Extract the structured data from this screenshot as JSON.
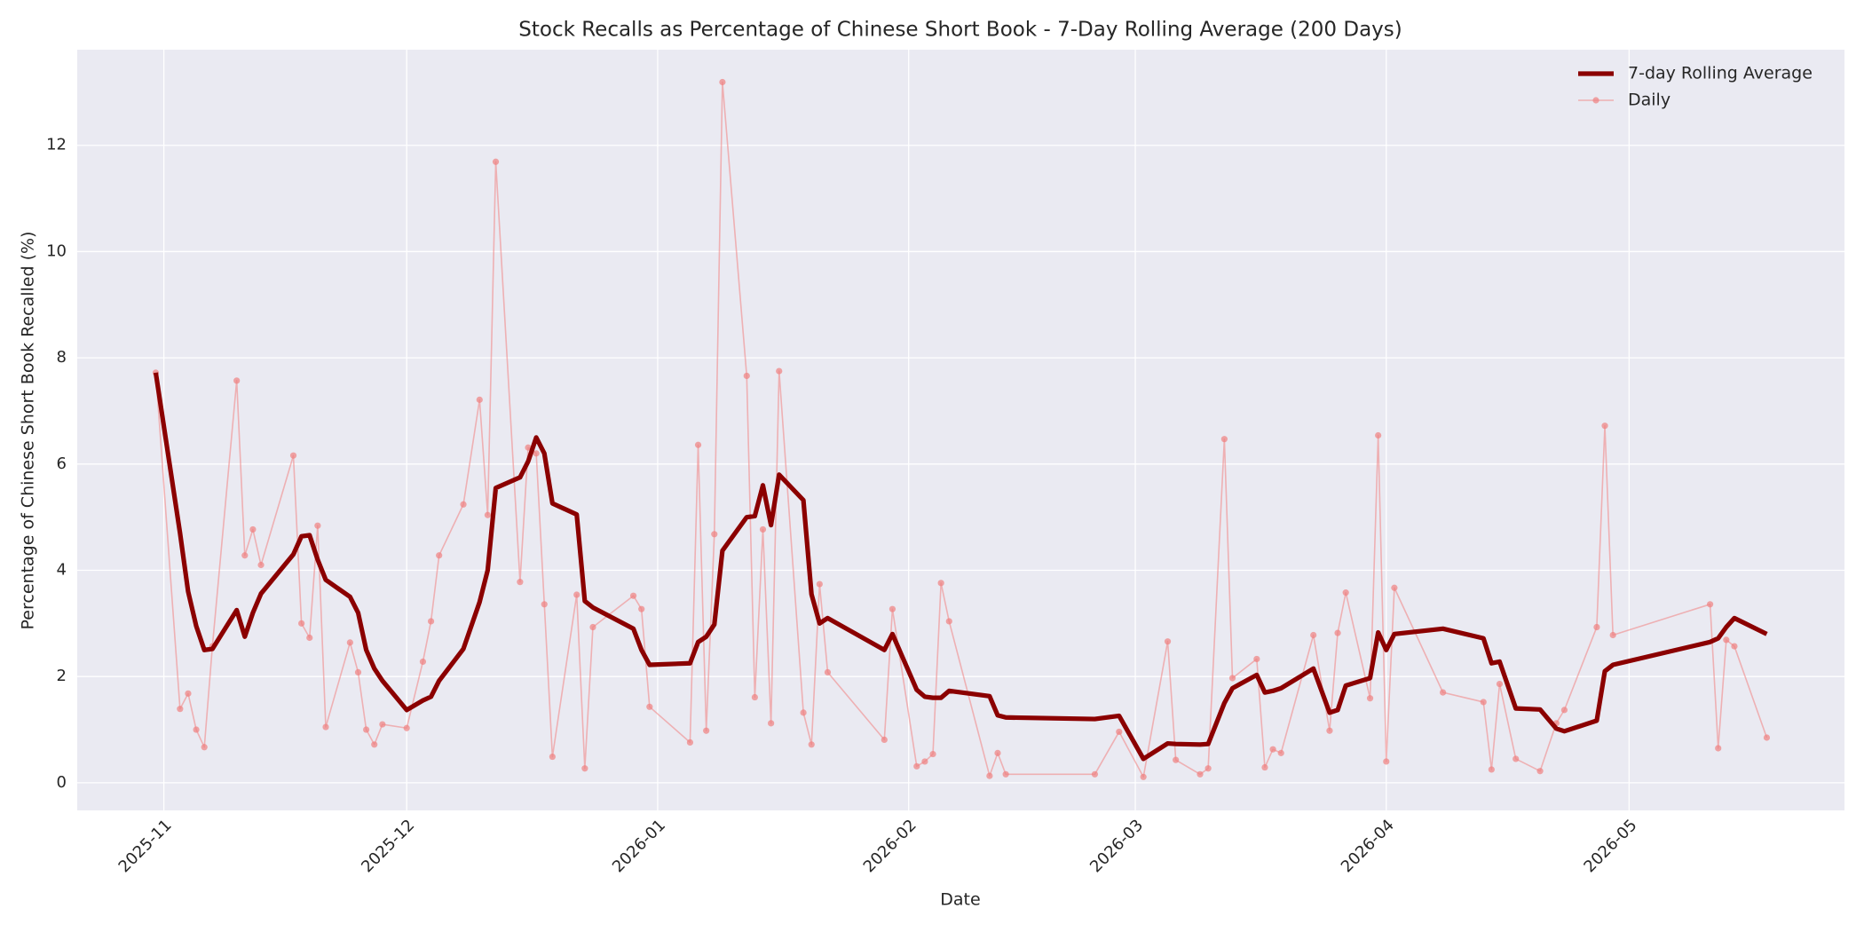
{
  "chart_data": {
    "type": "line",
    "title": "Stock Recalls as Percentage of Chinese Short Book - 7-Day Rolling Average (200 Days)",
    "x_label": "Date",
    "y_label": "Percentage of Chinese Short Book Recalled (%)",
    "x": [
      -1,
      2,
      3,
      4,
      5,
      6,
      9,
      10,
      11,
      12,
      16,
      17,
      18,
      19,
      20,
      23,
      24,
      25,
      26,
      27,
      30,
      32,
      33,
      34,
      37,
      39,
      40,
      41,
      44,
      45,
      46,
      47,
      48,
      51,
      52,
      53,
      58,
      59,
      60,
      65,
      66,
      67,
      68,
      69,
      72,
      73,
      74,
      75,
      76,
      79,
      80,
      81,
      82,
      89,
      90,
      93,
      94,
      95,
      96,
      97,
      102,
      103,
      104,
      115,
      118,
      121,
      124,
      125,
      128,
      129,
      131,
      132,
      135,
      136,
      137,
      138,
      142,
      144,
      145,
      146,
      149,
      150,
      151,
      152,
      158,
      163,
      164,
      165,
      167,
      170,
      172,
      173,
      177,
      178,
      179,
      191,
      192,
      193,
      194,
      198
    ],
    "series": [
      {
        "name": "7-day Rolling Average",
        "color": "#8b0000",
        "marker": false,
        "values": [
          7.72,
          4.7,
          3.6,
          2.95,
          2.5,
          2.52,
          3.25,
          2.75,
          3.2,
          3.56,
          4.3,
          4.64,
          4.66,
          4.2,
          3.82,
          3.5,
          3.2,
          2.5,
          2.15,
          1.92,
          1.37,
          1.55,
          1.62,
          1.92,
          2.52,
          3.4,
          4.0,
          5.55,
          5.75,
          6.05,
          6.5,
          6.2,
          5.26,
          5.05,
          3.42,
          3.3,
          2.9,
          2.5,
          2.22,
          2.25,
          2.65,
          2.75,
          2.98,
          4.37,
          5.0,
          5.02,
          5.6,
          4.85,
          5.8,
          5.32,
          3.55,
          3.0,
          3.1,
          2.5,
          2.8,
          1.75,
          1.62,
          1.6,
          1.6,
          1.73,
          1.63,
          1.27,
          1.23,
          1.2,
          1.26,
          0.45,
          0.74,
          0.73,
          0.72,
          0.73,
          1.5,
          1.78,
          2.03,
          1.7,
          1.73,
          1.78,
          2.15,
          1.32,
          1.37,
          1.83,
          1.97,
          2.83,
          2.5,
          2.8,
          2.9,
          2.72,
          2.25,
          2.28,
          1.4,
          1.38,
          1.02,
          0.97,
          1.17,
          2.1,
          2.22,
          2.65,
          2.72,
          2.93,
          3.1,
          2.8
        ]
      },
      {
        "name": "Daily",
        "color": "#f08080",
        "marker": true,
        "values": [
          7.72,
          1.39,
          1.68,
          1.0,
          0.67,
          2.57,
          7.57,
          4.28,
          4.77,
          4.1,
          6.16,
          3.0,
          2.73,
          4.84,
          1.05,
          2.64,
          2.08,
          1.0,
          0.72,
          1.1,
          1.03,
          2.28,
          3.04,
          4.28,
          5.24,
          7.21,
          5.04,
          11.69,
          3.78,
          6.31,
          6.2,
          3.36,
          0.49,
          3.54,
          0.27,
          2.93,
          3.52,
          3.27,
          1.43,
          0.76,
          6.36,
          0.98,
          4.68,
          13.19,
          7.66,
          1.61,
          4.77,
          1.12,
          7.75,
          1.32,
          0.72,
          3.74,
          2.08,
          0.81,
          3.27,
          0.31,
          0.4,
          0.54,
          3.76,
          3.04,
          0.13,
          0.56,
          0.16,
          0.16,
          0.96,
          0.11,
          2.66,
          0.43,
          0.16,
          0.27,
          6.47,
          1.97,
          2.33,
          0.29,
          0.63,
          0.56,
          2.78,
          0.98,
          2.82,
          3.58,
          1.59,
          6.54,
          0.4,
          3.67,
          1.7,
          1.52,
          0.25,
          1.86,
          0.45,
          0.22,
          1.12,
          1.37,
          2.93,
          6.72,
          2.78,
          3.36,
          0.65,
          2.69,
          2.57,
          0.85
        ]
      }
    ],
    "xlim": [
      -10.7,
      207.6
    ],
    "xticks": [
      {
        "value": 0,
        "label": "2025-11"
      },
      {
        "value": 30,
        "label": "2025-12"
      },
      {
        "value": 61,
        "label": "2026-01"
      },
      {
        "value": 92,
        "label": "2026-02"
      },
      {
        "value": 120,
        "label": "2026-03"
      },
      {
        "value": 151,
        "label": "2026-04"
      },
      {
        "value": 181,
        "label": "2026-05"
      }
    ],
    "ylim": [
      -0.52,
      13.8
    ],
    "yticks": [
      0,
      2,
      4,
      6,
      8,
      10,
      12
    ],
    "grid": true,
    "legend": "upper right"
  }
}
